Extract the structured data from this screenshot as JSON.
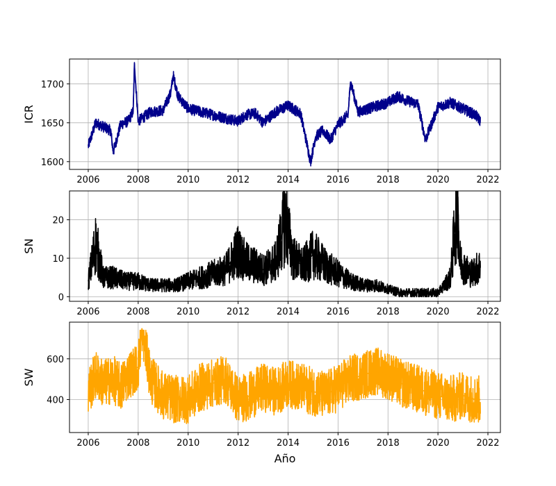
{
  "chart_data": [
    {
      "type": "line",
      "ylabel": "ICR",
      "xlabel": "",
      "color": "#00008b",
      "xlim": [
        2005.25,
        2022.5
      ],
      "ylim": [
        1590,
        1732
      ],
      "xticks": [
        "2006",
        "2008",
        "2010",
        "2012",
        "2014",
        "2016",
        "2018",
        "2020",
        "2022"
      ],
      "yticks": [
        "1600",
        "1650",
        "1700"
      ],
      "grid": true,
      "series": [
        {
          "x": [
            2006.0,
            2006.3,
            2006.6,
            2006.9,
            2007.0,
            2007.3,
            2007.6,
            2007.8,
            2007.85,
            2008.0,
            2008.5,
            2009.0,
            2009.3,
            2009.4,
            2009.6,
            2010.0,
            2010.5,
            2011.0,
            2011.5,
            2012.0,
            2012.3,
            2012.7,
            2013.0,
            2013.5,
            2014.0,
            2014.5,
            2014.9,
            2015.1,
            2015.4,
            2015.7,
            2016.0,
            2016.4,
            2016.5,
            2016.8,
            2017.2,
            2017.6,
            2018.0,
            2018.4,
            2018.8,
            2019.2,
            2019.5,
            2020.0,
            2020.5,
            2021.0,
            2021.5,
            2021.7
          ],
          "y": [
            1620,
            1650,
            1645,
            1640,
            1612,
            1648,
            1652,
            1665,
            1725,
            1652,
            1664,
            1666,
            1688,
            1711,
            1684,
            1668,
            1664,
            1660,
            1656,
            1652,
            1660,
            1662,
            1650,
            1664,
            1672,
            1662,
            1600,
            1632,
            1640,
            1628,
            1648,
            1660,
            1703,
            1664,
            1668,
            1672,
            1676,
            1684,
            1678,
            1674,
            1628,
            1670,
            1676,
            1668,
            1660,
            1652
          ]
        }
      ]
    },
    {
      "type": "line",
      "ylabel": "SN",
      "xlabel": "",
      "color": "#000000",
      "xlim": [
        2005.25,
        2022.5
      ],
      "ylim": [
        -1.2,
        27.5
      ],
      "xticks": [
        "2006",
        "2008",
        "2010",
        "2012",
        "2014",
        "2016",
        "2018",
        "2020",
        "2022"
      ],
      "yticks": [
        "0",
        "10",
        "20"
      ],
      "grid": true,
      "series": [
        {
          "x": [
            2006.0,
            2006.3,
            2006.6,
            2007.0,
            2007.5,
            2008.0,
            2008.5,
            2009.0,
            2009.5,
            2010.0,
            2010.5,
            2011.0,
            2011.5,
            2012.0,
            2012.3,
            2012.7,
            2013.0,
            2013.5,
            2013.9,
            2014.2,
            2014.6,
            2015.0,
            2015.5,
            2016.0,
            2016.5,
            2017.0,
            2017.5,
            2018.0,
            2018.5,
            2019.0,
            2019.5,
            2020.0,
            2020.5,
            2020.8,
            2020.85,
            2021.0,
            2021.3,
            2021.7
          ],
          "y": [
            4,
            14,
            5,
            5,
            4,
            4,
            3,
            3,
            3,
            4,
            5,
            6,
            7,
            12,
            9,
            8,
            7,
            9,
            20,
            10,
            8,
            11,
            8,
            6,
            4,
            3,
            3,
            2,
            1,
            1,
            1,
            1,
            5,
            26,
            10,
            8,
            6,
            8
          ]
        }
      ]
    },
    {
      "type": "line",
      "ylabel": "SW",
      "xlabel": "Año",
      "color": "#ffa500",
      "xlim": [
        2005.25,
        2022.5
      ],
      "ylim": [
        238,
        780
      ],
      "xticks": [
        "2006",
        "2008",
        "2010",
        "2012",
        "2014",
        "2016",
        "2018",
        "2020",
        "2022"
      ],
      "yticks": [
        "400",
        "600"
      ],
      "grid": true,
      "series": [
        {
          "x": [
            2006.0,
            2006.3,
            2006.6,
            2007.0,
            2007.3,
            2007.6,
            2008.0,
            2008.15,
            2008.5,
            2009.0,
            2009.5,
            2010.0,
            2010.5,
            2011.0,
            2011.5,
            2012.0,
            2012.5,
            2013.0,
            2013.5,
            2014.0,
            2014.5,
            2015.0,
            2015.5,
            2016.0,
            2016.5,
            2017.0,
            2017.5,
            2018.0,
            2018.5,
            2019.0,
            2019.5,
            2020.0,
            2020.5,
            2021.0,
            2021.5,
            2021.7
          ],
          "y": [
            440,
            520,
            480,
            500,
            460,
            520,
            560,
            750,
            500,
            420,
            400,
            400,
            460,
            480,
            500,
            400,
            420,
            460,
            440,
            480,
            460,
            440,
            420,
            460,
            500,
            520,
            540,
            520,
            480,
            460,
            440,
            420,
            400,
            420,
            400,
            400
          ]
        }
      ]
    }
  ]
}
